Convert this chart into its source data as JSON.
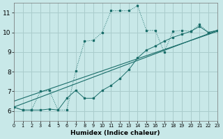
{
  "xlabel": "Humidex (Indice chaleur)",
  "bg_color": "#c8e8e8",
  "grid_color": "#aacccc",
  "line_color": "#1a6e6a",
  "xlim": [
    0,
    23
  ],
  "ylim": [
    5.5,
    11.5
  ],
  "xticks": [
    0,
    1,
    2,
    3,
    4,
    5,
    6,
    7,
    8,
    9,
    10,
    11,
    12,
    13,
    14,
    15,
    16,
    17,
    18,
    19,
    20,
    21,
    22,
    23
  ],
  "yticks": [
    6,
    7,
    8,
    9,
    10,
    11
  ],
  "s1_x": [
    0,
    1,
    2,
    3,
    4,
    5,
    6,
    7,
    8,
    9,
    10,
    11,
    12,
    13,
    14,
    15,
    16,
    17,
    18,
    19,
    20,
    21,
    22,
    23
  ],
  "s1_y": [
    6.2,
    6.05,
    6.05,
    7.0,
    7.05,
    6.05,
    6.05,
    8.05,
    9.55,
    9.6,
    10.0,
    11.1,
    11.1,
    11.1,
    11.35,
    10.1,
    10.1,
    9.0,
    10.05,
    10.1,
    10.05,
    10.4,
    10.0,
    10.1
  ],
  "s2_x": [
    0,
    1,
    2,
    3,
    4,
    5,
    6,
    7,
    8,
    9,
    10,
    11,
    12,
    13,
    14,
    15,
    16,
    17,
    18,
    19,
    20,
    21,
    22,
    23
  ],
  "s2_y": [
    6.2,
    6.05,
    6.05,
    6.05,
    6.1,
    6.05,
    6.65,
    7.05,
    6.65,
    6.65,
    7.05,
    7.3,
    7.65,
    8.1,
    8.7,
    9.1,
    9.3,
    9.55,
    9.75,
    9.9,
    10.05,
    10.3,
    10.0,
    10.1
  ],
  "trend1_x": [
    0,
    23
  ],
  "trend1_y": [
    6.2,
    10.1
  ],
  "trend2_x": [
    0,
    23
  ],
  "trend2_y": [
    6.5,
    10.05
  ],
  "xlabel_fontsize": 6.5,
  "tick_fontsize_x": 4.8,
  "tick_fontsize_y": 6.5
}
